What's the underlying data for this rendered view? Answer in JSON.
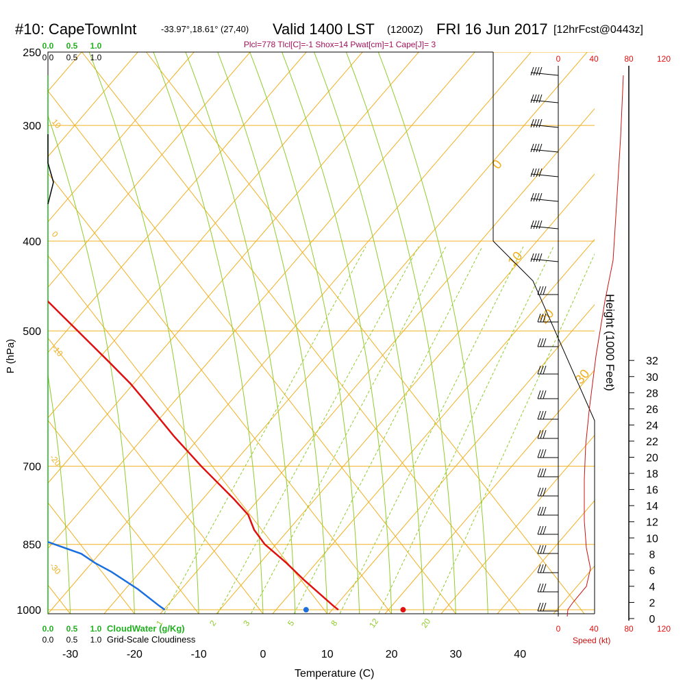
{
  "header": {
    "station": "#10: CapeTownInt",
    "coords": "-33.97°,18.61° (27,40)",
    "valid": "Valid 1400 LST",
    "zulu": "(1200Z)",
    "date": "FRI 16 Jun 2017",
    "forecast": "[12hrFcst@0443z]",
    "indices": "Plcl=778 Tlcl[C]=-1 Shox=14 Pwat[cm]=1 Cape[J]= 3"
  },
  "scales": {
    "cloudwater_ticks_top": [
      "0.0",
      "0.5",
      "1.0"
    ],
    "cloudiness_ticks_top": [
      "0.0",
      "0.5",
      "1.0"
    ],
    "cloudwater_ticks_bottom": [
      "0.0",
      "0.5",
      "1.0"
    ],
    "cloudiness_ticks_bottom": [
      "0.0",
      "0.5",
      "1.0"
    ],
    "cloudwater_label": "CloudWater (g/Kg)",
    "cloudiness_label": "Grid-Scale Cloudiness",
    "speed_ticks": [
      "0",
      "40",
      "80",
      "120"
    ],
    "speed_label": "Speed (kt)",
    "height_label": "Height (1000 Feet)"
  },
  "colors": {
    "temperature": "#e01010",
    "dewpoint": "#1a6fe0",
    "isotherm": "#f0b020",
    "dry_adiabat": "#f0b020",
    "moist_adiabat": "#8fcc2a",
    "mixing_ratio": "#8fcc2a",
    "cloudwater": "#20b020",
    "cloudiness": "#000000",
    "wind_speed": "#cc1010",
    "indices": "#a0105a"
  },
  "chart_data": {
    "type": "line",
    "title": "#10: CapeTownInt -33.97°,18.61° (27,40) Valid 1400 LST (1200Z) FRI 16 Jun 2017 [12hrFcst@0443z]",
    "xlabel": "Temperature (C)",
    "ylabel": "P (hPa)",
    "xlim": [
      -34,
      50
    ],
    "x_ticks": [
      "-30",
      "-20",
      "-10",
      "0",
      "10",
      "20",
      "30",
      "40"
    ],
    "y_scale": "log",
    "ylim": [
      1010,
      250
    ],
    "y_ticks": [
      "250",
      "300",
      "400",
      "500",
      "700",
      "850",
      "1000"
    ],
    "y_tick_values": [
      250,
      300,
      400,
      500,
      700,
      850,
      1000
    ],
    "height_ticks": [
      "0",
      "2",
      "4",
      "6",
      "8",
      "10",
      "12",
      "14",
      "16",
      "18",
      "20",
      "22",
      "24",
      "26",
      "28",
      "30",
      "32"
    ],
    "mixing_ratio_labels": [
      "1",
      "2",
      "3",
      "5",
      "8",
      "12",
      "20"
    ],
    "isotherm_skew_labels": [
      "10",
      "0",
      "-10",
      "-20",
      "-30"
    ],
    "moist_adiabat_labels": [
      "0",
      "10",
      "20",
      "30"
    ],
    "surface_markers": {
      "temperature": 21.8,
      "dewpoint": 6.7
    },
    "series": [
      {
        "points": [
          [
            -2.7,
            262
          ],
          [
            -1.9,
            280
          ],
          [
            -1.1,
            300
          ],
          [
            -0.3,
            320
          ],
          [
            0.5,
            340
          ],
          [
            1.1,
            360
          ],
          [
            1.7,
            380
          ],
          [
            2.5,
            400
          ],
          [
            3.5,
            430
          ],
          [
            4.3,
            460
          ],
          [
            5.5,
            500
          ],
          [
            6.6,
            540
          ],
          [
            7.3,
            570
          ],
          [
            7.5,
            600
          ],
          [
            7.7,
            650
          ],
          [
            8.3,
            700
          ],
          [
            9.4,
            760
          ],
          [
            9.7,
            790
          ],
          [
            8.8,
            820
          ],
          [
            8.7,
            850
          ],
          [
            9.8,
            890
          ],
          [
            10.5,
            930
          ],
          [
            11.9,
            990
          ],
          [
            12.2,
            1000
          ]
        ]
      },
      {
        "points": [
          [
            -33,
            262
          ],
          [
            -30,
            290
          ],
          [
            -27,
            320
          ],
          [
            -24.5,
            350
          ],
          [
            -23.5,
            370
          ],
          [
            -24.5,
            400
          ],
          [
            -26.3,
            440
          ],
          [
            -29,
            470
          ],
          [
            -32,
            500
          ],
          [
            -34,
            540
          ],
          [
            -33,
            580
          ],
          [
            -33,
            620
          ],
          [
            -32.5,
            650
          ],
          [
            -32,
            700
          ],
          [
            -32,
            740
          ],
          [
            -30,
            780
          ],
          [
            -27.8,
            810
          ],
          [
            -27,
            830
          ],
          [
            -24,
            850
          ],
          [
            -21,
            870
          ],
          [
            -20,
            890
          ],
          [
            -18.5,
            910
          ],
          [
            -16.5,
            950
          ],
          [
            -15.2,
            990
          ],
          [
            -14.8,
            1000
          ]
        ]
      }
    ]
  }
}
